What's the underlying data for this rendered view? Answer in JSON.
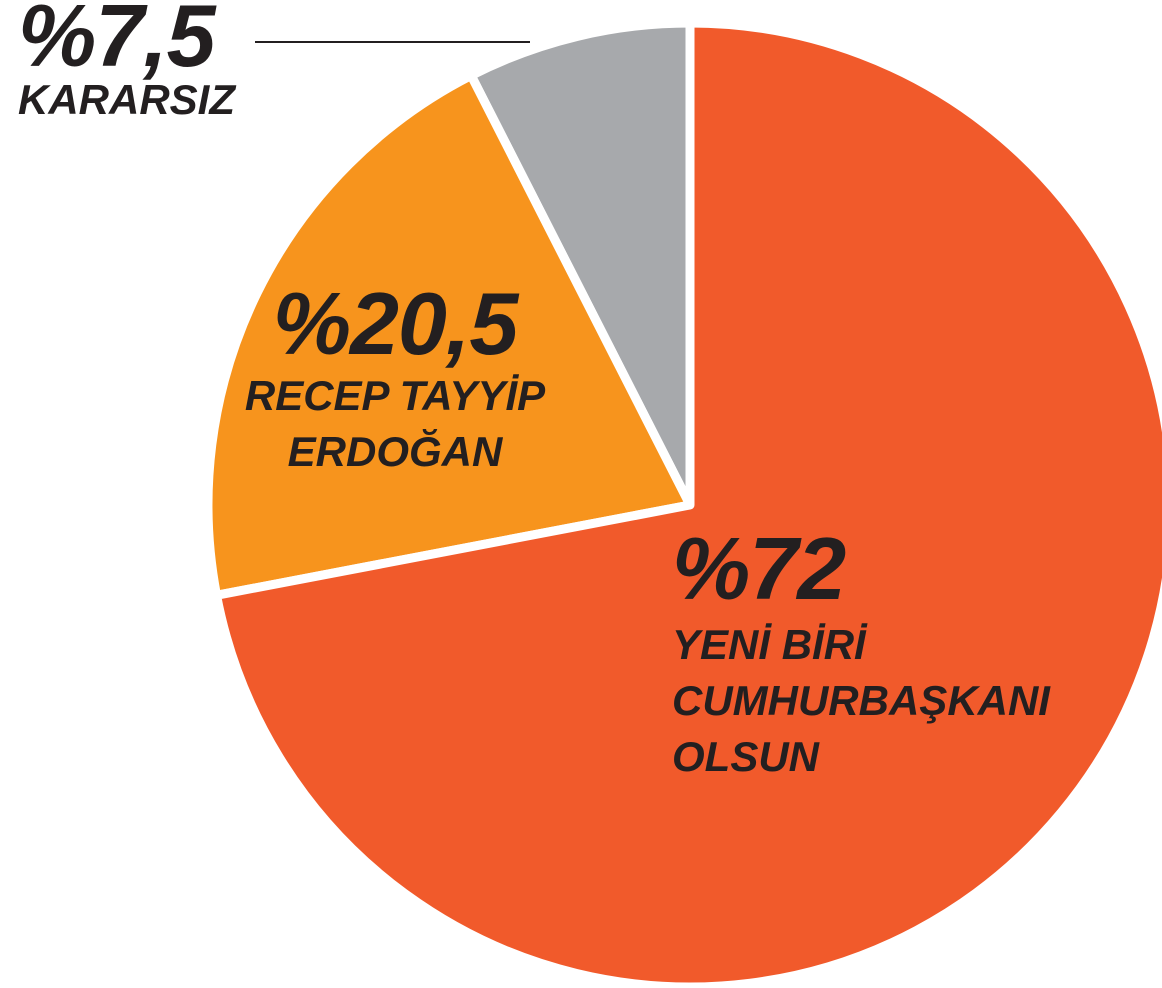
{
  "chart_data": {
    "type": "pie",
    "categories": [
      "YENİ BİRİ\nCUMHURBAŞKANI\nOLSUN",
      "RECEP TAYYİP\nERDOĞAN",
      "KARARSIZ"
    ],
    "values": [
      72,
      20.5,
      7.5
    ],
    "value_labels": [
      "%72",
      "%20,5",
      "%7,5"
    ],
    "colors": [
      "#f15a2b",
      "#f7941d",
      "#a7a9ac"
    ]
  }
}
